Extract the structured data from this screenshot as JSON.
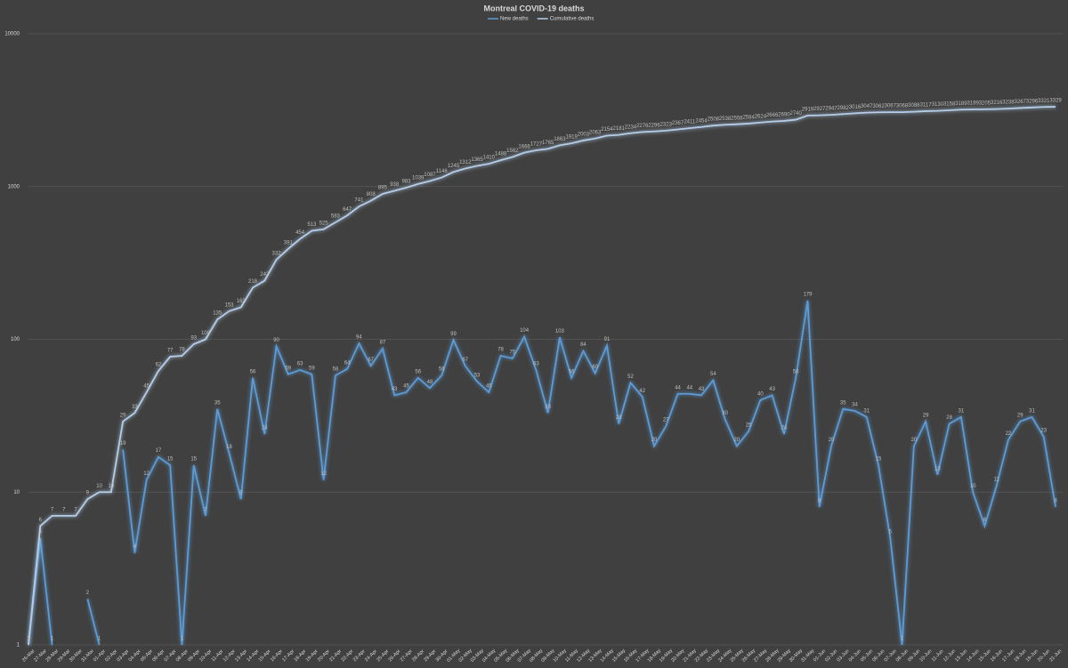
{
  "chart_data": {
    "type": "line",
    "title": "Montreal COVID-19 deaths",
    "log_scale": true,
    "grid": true,
    "legend": "top",
    "ylim": [
      1,
      10000
    ],
    "yticks": [
      1,
      10,
      100,
      1000,
      10000
    ],
    "categories": [
      "26-Mar",
      "27-Mar",
      "28-Mar",
      "29-Mar",
      "30-Mar",
      "31-Mar",
      "01-Apr",
      "02-Apr",
      "03-Apr",
      "04-Apr",
      "05-Apr",
      "06-Apr",
      "07-Apr",
      "08-Apr",
      "09-Apr",
      "10-Apr",
      "11-Apr",
      "12-Apr",
      "13-Apr",
      "14-Apr",
      "15-Apr",
      "16-Apr",
      "17-Apr",
      "18-Apr",
      "19-Apr",
      "20-Apr",
      "21-Apr",
      "22-Apr",
      "23-Apr",
      "24-Apr",
      "25-Apr",
      "26-Apr",
      "27-Apr",
      "28-Apr",
      "29-Apr",
      "30-Apr",
      "01-May",
      "02-May",
      "03-May",
      "04-May",
      "05-May",
      "06-May",
      "07-May",
      "08-May",
      "09-May",
      "10-May",
      "11-May",
      "12-May",
      "13-May",
      "14-May",
      "15-May",
      "16-May",
      "17-May",
      "18-May",
      "19-May",
      "20-May",
      "21-May",
      "22-May",
      "23-May",
      "24-May",
      "25-May",
      "26-May",
      "27-May",
      "28-May",
      "29-May",
      "30-May",
      "31-May",
      "01-Jun",
      "02-Jun",
      "03-Jun",
      "04-Jun",
      "05-Jun",
      "06-Jun",
      "07-Jun",
      "08-Jun",
      "09-Jun",
      "10-Jun",
      "11-Jun",
      "12-Jun",
      "13-Jun",
      "14-Jun",
      "15-Jun",
      "16-Jun",
      "17-Jun",
      "18-Jun",
      "19-Jun",
      "20-Jun",
      "21-Jun"
    ],
    "series": [
      {
        "name": "New deaths",
        "color": "#5b9bd5",
        "values": [
          1,
          5,
          1,
          null,
          null,
          2,
          1,
          null,
          19,
          4,
          12,
          17,
          15,
          1,
          15,
          7,
          35,
          18,
          9,
          56,
          24,
          90,
          59,
          63,
          59,
          12,
          58,
          64,
          94,
          67,
          87,
          43,
          45,
          56,
          48,
          58,
          99,
          67,
          53,
          45,
          78,
          75,
          104,
          63,
          33,
          103,
          56,
          84,
          60,
          91,
          28,
          52,
          42,
          20,
          27,
          44,
          44,
          43,
          54,
          30,
          20,
          25,
          40,
          43,
          24,
          56,
          179,
          8,
          20,
          35,
          34,
          31,
          15,
          5,
          1,
          20,
          29,
          13,
          28,
          31,
          10,
          6,
          11,
          22,
          29,
          31,
          23,
          8
        ]
      },
      {
        "name": "Cumulative deaths",
        "color": "#b4cde8",
        "values": [
          1,
          6,
          7,
          7,
          7,
          9,
          10,
          10,
          29,
          33,
          45,
          62,
          77,
          78,
          93,
          100,
          135,
          153,
          162,
          218,
          242,
          332,
          391,
          454,
          513,
          525,
          583,
          647,
          741,
          808,
          895,
          938,
          983,
          1039,
          1087,
          1146,
          1245,
          1312,
          1365,
          1410,
          1488,
          1562,
          1666,
          1727,
          1765,
          1863,
          1919,
          2003,
          2063,
          2154,
          2181,
          2234,
          2276,
          2296,
          2323,
          2367,
          2411,
          2454,
          2508,
          2538,
          2558,
          2584,
          2624,
          2666,
          2690,
          2740,
          2919,
          2927,
          2947,
          2982,
          3016,
          3047,
          3062,
          3067,
          3068,
          3088,
          3117,
          3130,
          3158,
          3189,
          3199,
          3205,
          3216,
          3238,
          3267,
          3296,
          3321,
          3329
        ]
      }
    ]
  }
}
